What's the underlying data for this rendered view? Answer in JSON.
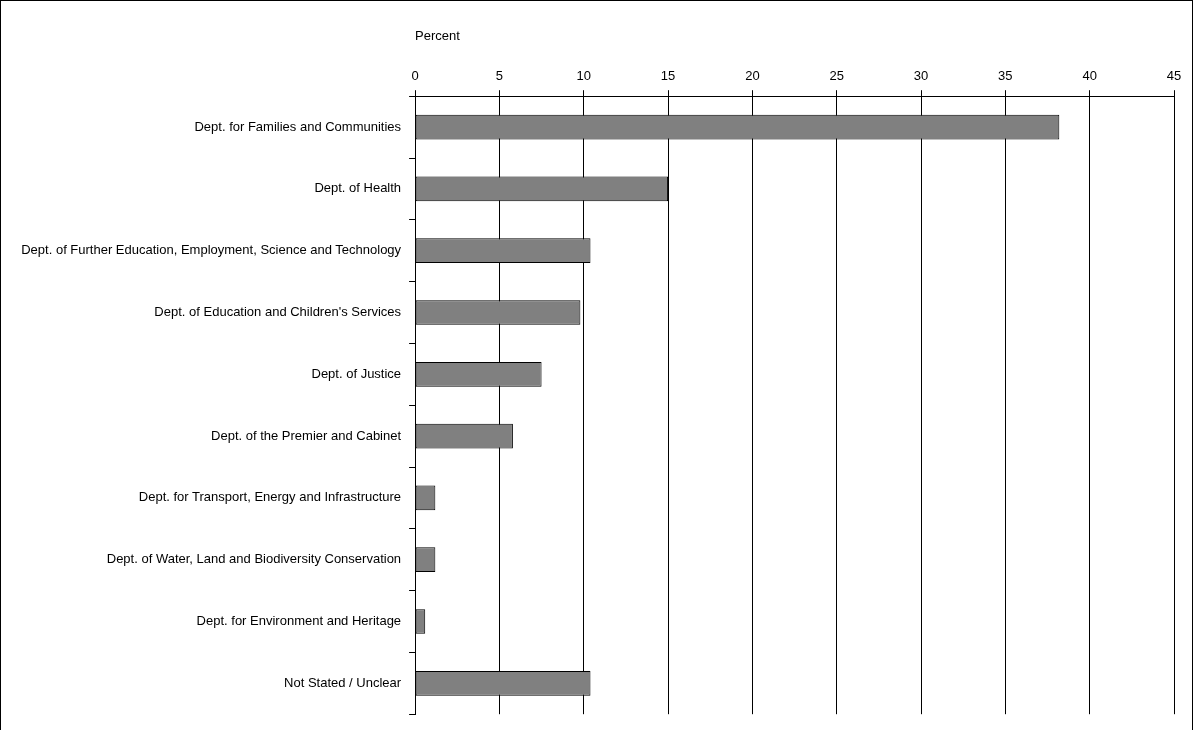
{
  "chart_data": {
    "type": "bar",
    "orientation": "horizontal",
    "xlabel": "Percent",
    "categories": [
      "Dept. for Families and Communities",
      "Dept. of Health",
      "Dept. of Further Education, Employment, Science and Technology",
      "Dept. of Education and Children's Services",
      "Dept. of Justice",
      "Dept. of the Premier and Cabinet",
      "Dept. for Transport, Energy and Infrastructure",
      "Dept. of Water, Land and Biodiversity Conservation",
      "Dept. for Environment and Heritage",
      "Not Stated / Unclear"
    ],
    "values": [
      38.2,
      15.0,
      10.4,
      9.8,
      7.5,
      5.8,
      1.2,
      1.2,
      0.6,
      10.4
    ],
    "color": "#808080",
    "xlim": [
      0,
      45
    ],
    "xticks": [
      0,
      5,
      10,
      15,
      20,
      25,
      30,
      35,
      40,
      45
    ],
    "grid": "x",
    "legend": false
  }
}
